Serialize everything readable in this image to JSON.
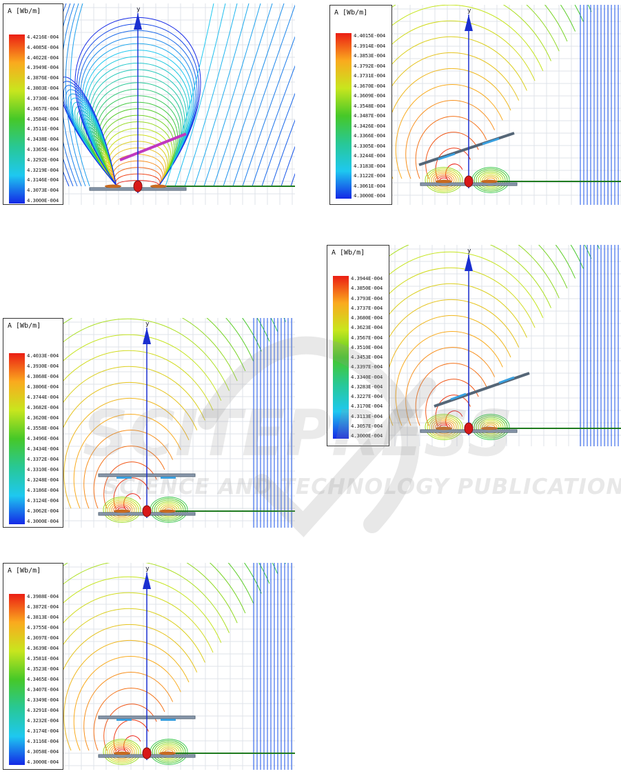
{
  "watermark": {
    "text": "SCIENCE AND TECHNOLOGY PUBLICATIONS"
  },
  "colors": {
    "axis": "#1a2fd0",
    "ground": "#1e7a1e",
    "plate": "#556677",
    "coil": "#d81818"
  },
  "panels": [
    {
      "id": "top-left",
      "legend_title": "A [Wb/m]",
      "y_axis_label": "y",
      "scale": [
        "4.4216E-004",
        "4.4085E-004",
        "4.4022E-004",
        "4.3949E-004",
        "4.3876E-004",
        "4.3803E-004",
        "4.3730E-004",
        "4.3657E-004",
        "4.3584E-004",
        "4.3511E-004",
        "4.3438E-004",
        "4.3365E-004",
        "4.3292E-004",
        "4.3219E-004",
        "4.3146E-004",
        "4.3073E-004",
        "4.3000E-004"
      ]
    },
    {
      "id": "mid-left",
      "legend_title": "A [Wb/m]",
      "y_axis_label": "y",
      "scale": [
        "4.4033E-004",
        "4.3930E-004",
        "4.3868E-004",
        "4.3806E-004",
        "4.3744E-004",
        "4.3682E-004",
        "4.3620E-004",
        "4.3558E-004",
        "4.3496E-004",
        "4.3434E-004",
        "4.3372E-004",
        "4.3310E-004",
        "4.3248E-004",
        "4.3186E-004",
        "4.3124E-004",
        "4.3062E-004",
        "4.3000E-004"
      ]
    },
    {
      "id": "bottom-left",
      "legend_title": "A [Wb/m]",
      "y_axis_label": "y",
      "scale": [
        "4.3988E-004",
        "4.3872E-004",
        "4.3813E-004",
        "4.3755E-004",
        "4.3697E-004",
        "4.3639E-004",
        "4.3581E-004",
        "4.3523E-004",
        "4.3465E-004",
        "4.3407E-004",
        "4.3349E-004",
        "4.3291E-004",
        "4.3232E-004",
        "4.3174E-004",
        "4.3116E-004",
        "4.3058E-004",
        "4.3000E-004"
      ]
    },
    {
      "id": "top-right",
      "legend_title": "A [Wb/m]",
      "y_axis_label": "y",
      "scale": [
        "4.4015E-004",
        "4.3914E-004",
        "4.3853E-004",
        "4.3792E-004",
        "4.3731E-004",
        "4.3670E-004",
        "4.3609E-004",
        "4.3548E-004",
        "4.3487E-004",
        "4.3426E-004",
        "4.3366E-004",
        "4.3305E-004",
        "4.3244E-004",
        "4.3183E-004",
        "4.3122E-004",
        "4.3061E-004",
        "4.3000E-004"
      ]
    },
    {
      "id": "mid-right",
      "legend_title": "A [Wb/m]",
      "y_axis_label": "y",
      "scale": [
        "4.3944E-004",
        "4.3850E-004",
        "4.3793E-004",
        "4.3737E-004",
        "4.3680E-004",
        "4.3623E-004",
        "4.3567E-004",
        "4.3510E-004",
        "4.3453E-004",
        "4.3397E-004",
        "4.3340E-004",
        "4.3283E-004",
        "4.3227E-004",
        "4.3170E-004",
        "4.3113E-004",
        "4.3057E-004",
        "4.3000E-004"
      ]
    }
  ]
}
